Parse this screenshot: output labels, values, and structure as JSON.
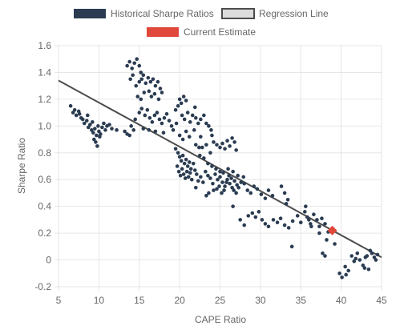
{
  "colors": {
    "historical": "#2b3c52",
    "regression_line": "#4d4d4d",
    "regression_fill": "#dcdcdc",
    "current": "#e0483a",
    "grid": "#e6e6e6",
    "text": "#666666"
  },
  "chart_data": {
    "type": "scatter",
    "xlabel": "CAPE Ratio",
    "ylabel": "Sharpe Ratio",
    "xlim": [
      5,
      45
    ],
    "ylim": [
      -0.2,
      1.6
    ],
    "xticks": [
      5,
      10,
      15,
      20,
      25,
      30,
      35,
      40,
      45
    ],
    "yticks": [
      -0.2,
      0,
      0.2,
      0.4,
      0.6,
      0.8,
      1.0,
      1.2,
      1.4,
      1.6
    ],
    "ytick_labels": [
      "-0.2",
      "0",
      "0.2",
      "0.4",
      "0.6",
      "0.8",
      "1.0",
      "1.2",
      "1.4",
      "1.6"
    ],
    "grid": true,
    "legend_position": "top",
    "legend": [
      {
        "label": "Historical Sharpe Ratios",
        "kind": "filled-box"
      },
      {
        "label": "Regression Line",
        "kind": "outlined-box"
      },
      {
        "label": "Current Estimate",
        "kind": "red-box"
      }
    ],
    "series": [
      {
        "name": "Historical Sharpe Ratios",
        "marker": "circle",
        "points": [
          [
            6.5,
            1.15
          ],
          [
            6.8,
            1.1
          ],
          [
            7.0,
            1.12
          ],
          [
            7.2,
            1.08
          ],
          [
            7.5,
            1.11
          ],
          [
            7.8,
            1.06
          ],
          [
            8.0,
            1.05
          ],
          [
            8.2,
            1.02
          ],
          [
            8.5,
            1.04
          ],
          [
            8.7,
            0.99
          ],
          [
            8.9,
            1.01
          ],
          [
            9.1,
            0.97
          ],
          [
            9.3,
            0.95
          ],
          [
            9.5,
            0.98
          ],
          [
            9.7,
            0.93
          ],
          [
            9.9,
            1.0
          ],
          [
            10.0,
            0.96
          ],
          [
            10.2,
            0.94
          ],
          [
            10.4,
            0.99
          ],
          [
            10.6,
            1.02
          ],
          [
            10.8,
            0.97
          ],
          [
            9.4,
            0.9
          ],
          [
            9.6,
            0.88
          ],
          [
            9.8,
            0.85
          ],
          [
            10.1,
            0.92
          ],
          [
            9.2,
            1.03
          ],
          [
            8.6,
            1.08
          ],
          [
            7.6,
            1.09
          ],
          [
            11.0,
            1.0
          ],
          [
            11.3,
            1.01
          ],
          [
            11.6,
            0.98
          ],
          [
            12.2,
            0.97
          ],
          [
            13.2,
            0.96
          ],
          [
            13.5,
            0.94
          ],
          [
            14.0,
            1.0
          ],
          [
            14.3,
            0.97
          ],
          [
            13.8,
            0.93
          ],
          [
            14.5,
            1.05
          ],
          [
            13.5,
            1.45
          ],
          [
            13.8,
            1.48
          ],
          [
            14.1,
            1.43
          ],
          [
            14.4,
            1.47
          ],
          [
            14.7,
            1.5
          ],
          [
            15.0,
            1.45
          ],
          [
            15.2,
            1.4
          ],
          [
            15.5,
            1.38
          ],
          [
            14.2,
            1.38
          ],
          [
            13.9,
            1.35
          ],
          [
            14.6,
            1.3
          ],
          [
            15.0,
            1.33
          ],
          [
            15.3,
            1.35
          ],
          [
            15.8,
            1.32
          ],
          [
            16.1,
            1.36
          ],
          [
            16.4,
            1.33
          ],
          [
            16.7,
            1.35
          ],
          [
            17.0,
            1.3
          ],
          [
            17.3,
            1.33
          ],
          [
            17.6,
            1.28
          ],
          [
            16.2,
            1.26
          ],
          [
            16.5,
            1.22
          ],
          [
            15.6,
            1.25
          ],
          [
            15.2,
            1.2
          ],
          [
            14.8,
            1.22
          ],
          [
            16.9,
            1.24
          ],
          [
            17.4,
            1.2
          ],
          [
            17.8,
            1.25
          ],
          [
            15.0,
            1.1
          ],
          [
            15.3,
            1.13
          ],
          [
            15.7,
            1.08
          ],
          [
            16.0,
            1.12
          ],
          [
            16.3,
            1.06
          ],
          [
            16.6,
            1.03
          ],
          [
            16.9,
            1.08
          ],
          [
            17.2,
            1.1
          ],
          [
            17.5,
            1.05
          ],
          [
            17.8,
            1.02
          ],
          [
            18.1,
            1.06
          ],
          [
            18.4,
            1.09
          ],
          [
            18.7,
            1.04
          ],
          [
            19.0,
            1.0
          ],
          [
            15.5,
            0.98
          ],
          [
            16.2,
            0.97
          ],
          [
            17.0,
            0.96
          ],
          [
            18.0,
            0.95
          ],
          [
            19.2,
            0.97
          ],
          [
            19.5,
            1.12
          ],
          [
            19.8,
            1.15
          ],
          [
            20.0,
            1.2
          ],
          [
            20.2,
            1.17
          ],
          [
            20.5,
            1.22
          ],
          [
            20.8,
            1.19
          ],
          [
            20.3,
            1.08
          ],
          [
            20.6,
            1.05
          ],
          [
            21.0,
            1.1
          ],
          [
            21.3,
            1.03
          ],
          [
            21.6,
            1.08
          ],
          [
            22.0,
            1.06
          ],
          [
            22.3,
            1.02
          ],
          [
            22.6,
            1.05
          ],
          [
            23.0,
            1.08
          ],
          [
            23.3,
            1.02
          ],
          [
            23.6,
            1.0
          ],
          [
            23.9,
            0.97
          ],
          [
            21.8,
            0.97
          ],
          [
            22.6,
            0.92
          ],
          [
            24.0,
            0.93
          ],
          [
            24.2,
            0.88
          ],
          [
            20.0,
            0.93
          ],
          [
            20.4,
            0.9
          ],
          [
            20.8,
            0.96
          ],
          [
            21.2,
            0.92
          ],
          [
            22.0,
            0.86
          ],
          [
            22.4,
            0.84
          ],
          [
            19.6,
            1.02
          ],
          [
            21.9,
            1.14
          ],
          [
            19.5,
            0.83
          ],
          [
            19.8,
            0.8
          ],
          [
            20.0,
            0.77
          ],
          [
            20.2,
            0.74
          ],
          [
            20.4,
            0.78
          ],
          [
            20.6,
            0.72
          ],
          [
            20.8,
            0.75
          ],
          [
            21.0,
            0.7
          ],
          [
            21.2,
            0.73
          ],
          [
            21.4,
            0.68
          ],
          [
            19.7,
            0.7
          ],
          [
            19.9,
            0.66
          ],
          [
            20.1,
            0.63
          ],
          [
            20.3,
            0.68
          ],
          [
            20.5,
            0.64
          ],
          [
            20.7,
            0.61
          ],
          [
            20.9,
            0.66
          ],
          [
            21.1,
            0.62
          ],
          [
            21.3,
            0.65
          ],
          [
            21.5,
            0.6
          ],
          [
            21.7,
            0.72
          ],
          [
            21.9,
            0.67
          ],
          [
            22.1,
            0.64
          ],
          [
            22.3,
            0.59
          ],
          [
            22.6,
            0.62
          ],
          [
            22.9,
            0.58
          ],
          [
            23.2,
            0.66
          ],
          [
            23.5,
            0.63
          ],
          [
            23.8,
            0.61
          ],
          [
            24.1,
            0.57
          ],
          [
            22.5,
            0.78
          ],
          [
            23.0,
            0.76
          ],
          [
            23.5,
            0.72
          ],
          [
            24.0,
            0.7
          ],
          [
            24.5,
            0.68
          ],
          [
            25.0,
            0.66
          ],
          [
            22.8,
            0.84
          ],
          [
            23.3,
            0.86
          ],
          [
            23.8,
            0.8
          ],
          [
            24.4,
            0.64
          ],
          [
            24.7,
            0.6
          ],
          [
            25.0,
            0.62
          ],
          [
            25.3,
            0.58
          ],
          [
            25.6,
            0.55
          ],
          [
            25.9,
            0.6
          ],
          [
            26.2,
            0.57
          ],
          [
            26.5,
            0.54
          ],
          [
            26.8,
            0.59
          ],
          [
            27.1,
            0.56
          ],
          [
            24.6,
            0.53
          ],
          [
            24.9,
            0.55
          ],
          [
            25.2,
            0.5
          ],
          [
            25.5,
            0.52
          ],
          [
            25.8,
            0.58
          ],
          [
            26.1,
            0.63
          ],
          [
            26.4,
            0.61
          ],
          [
            26.7,
            0.52
          ],
          [
            27.0,
            0.5
          ],
          [
            27.3,
            0.54
          ],
          [
            27.6,
            0.58
          ],
          [
            27.9,
            0.62
          ],
          [
            25.4,
            0.65
          ],
          [
            26.0,
            0.68
          ],
          [
            26.6,
            0.66
          ],
          [
            27.2,
            0.63
          ],
          [
            23.3,
            0.48
          ],
          [
            23.6,
            0.5
          ],
          [
            24.2,
            0.52
          ],
          [
            22.0,
            0.54
          ],
          [
            25.0,
            0.84
          ],
          [
            25.3,
            0.87
          ],
          [
            25.6,
            0.83
          ],
          [
            25.9,
            0.89
          ],
          [
            26.2,
            0.85
          ],
          [
            26.5,
            0.91
          ],
          [
            26.8,
            0.88
          ],
          [
            24.6,
            0.86
          ],
          [
            27.0,
            0.82
          ],
          [
            28.0,
            0.57
          ],
          [
            28.4,
            0.52
          ],
          [
            28.8,
            0.5
          ],
          [
            29.2,
            0.55
          ],
          [
            29.6,
            0.53
          ],
          [
            30.1,
            0.49
          ],
          [
            30.6,
            0.46
          ],
          [
            31.0,
            0.52
          ],
          [
            31.5,
            0.48
          ],
          [
            26.6,
            0.4
          ],
          [
            27.5,
            0.3
          ],
          [
            28.0,
            0.26
          ],
          [
            28.5,
            0.33
          ],
          [
            29.0,
            0.35
          ],
          [
            29.4,
            0.32
          ],
          [
            29.8,
            0.36
          ],
          [
            30.2,
            0.3
          ],
          [
            30.6,
            0.27
          ],
          [
            31.0,
            0.25
          ],
          [
            31.6,
            0.3
          ],
          [
            32.1,
            0.28
          ],
          [
            32.5,
            0.31
          ],
          [
            33.0,
            0.26
          ],
          [
            33.5,
            0.24
          ],
          [
            34.0,
            0.29
          ],
          [
            32.6,
            0.55
          ],
          [
            33.0,
            0.5
          ],
          [
            33.4,
            0.45
          ],
          [
            33.2,
            0.42
          ],
          [
            33.9,
            0.1
          ],
          [
            34.6,
            0.33
          ],
          [
            35.0,
            0.28
          ],
          [
            35.5,
            0.36
          ],
          [
            35.8,
            0.32
          ],
          [
            36.2,
            0.27
          ],
          [
            36.6,
            0.34
          ],
          [
            37.0,
            0.3
          ],
          [
            37.3,
            0.25
          ],
          [
            37.6,
            0.31
          ],
          [
            38.0,
            0.27
          ],
          [
            38.4,
            0.21
          ],
          [
            38.0,
            0.03
          ],
          [
            38.2,
            0.15
          ],
          [
            37.3,
            0.2
          ],
          [
            36.3,
            0.25
          ],
          [
            36.0,
            0.3
          ],
          [
            35.6,
            0.4
          ],
          [
            37.7,
            0.05
          ],
          [
            39.2,
            0.12
          ],
          [
            39.8,
            -0.1
          ],
          [
            40.1,
            -0.13
          ],
          [
            40.5,
            -0.05
          ],
          [
            40.9,
            -0.08
          ],
          [
            41.3,
            0.03
          ],
          [
            41.6,
            -0.01
          ],
          [
            42.0,
            0.05
          ],
          [
            42.3,
            0.0
          ],
          [
            42.7,
            -0.04
          ],
          [
            43.0,
            0.02
          ],
          [
            43.4,
            -0.07
          ],
          [
            43.8,
            0.05
          ],
          [
            44.1,
            0.02
          ],
          [
            44.5,
            0.04
          ],
          [
            40.6,
            -0.11
          ],
          [
            41.8,
            0.01
          ],
          [
            42.9,
            -0.06
          ],
          [
            43.6,
            0.07
          ],
          [
            44.3,
            0.0
          ],
          [
            43.2,
            0.03
          ]
        ]
      },
      {
        "name": "Regression Line",
        "type": "line",
        "points": [
          [
            5,
            1.34
          ],
          [
            45,
            0.02
          ]
        ]
      },
      {
        "name": "Current Estimate",
        "marker": "diamond",
        "points": [
          [
            38.9,
            0.22
          ]
        ]
      }
    ]
  }
}
